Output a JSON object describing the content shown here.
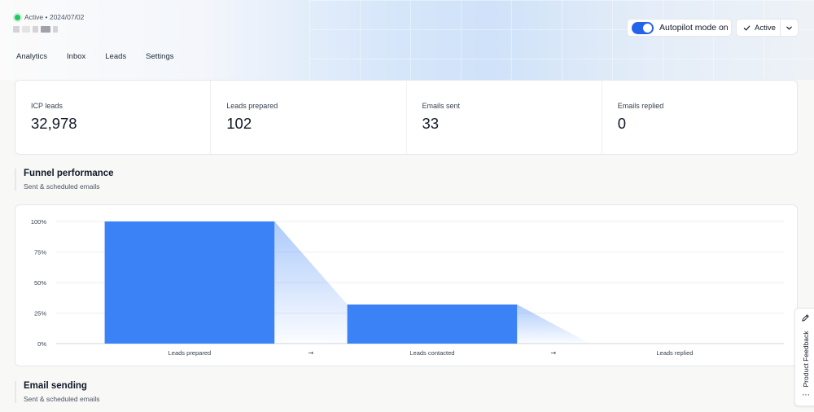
{
  "header": {
    "status_text": "Active • 2024/07/02",
    "status_color": "#22c55e"
  },
  "nav": {
    "tabs": [
      "Analytics",
      "Inbox",
      "Leads",
      "Settings"
    ]
  },
  "autopilot": {
    "label": "Autopilot mode on",
    "enabled": true
  },
  "status_button": {
    "label": "Active",
    "check_icon": "check-icon",
    "caret_icon": "chevron-down-icon"
  },
  "stats": [
    {
      "label": "ICP leads",
      "value": "32,978"
    },
    {
      "label": "Leads prepared",
      "value": "102"
    },
    {
      "label": "Emails sent",
      "value": "33"
    },
    {
      "label": "Emails replied",
      "value": "0"
    }
  ],
  "funnel": {
    "title": "Funnel performance",
    "subtitle": "Sent & scheduled emails"
  },
  "email_sending": {
    "title": "Email sending",
    "subtitle": "Sent & scheduled emails"
  },
  "chart_data": {
    "type": "bar",
    "categories": [
      "Leads prepared",
      "Leads contacted",
      "Leads replied"
    ],
    "values": [
      100,
      32,
      0
    ],
    "y_ticks": [
      "0%",
      "25%",
      "50%",
      "75%",
      "100%"
    ],
    "ylim": [
      0,
      100
    ],
    "arrow_glyph": "→",
    "bar_color": "#3b82f6",
    "grid": true
  },
  "feedback": {
    "label": "Product Feedback",
    "icon": "pencil-icon",
    "more_icon": "ellipsis-icon"
  }
}
